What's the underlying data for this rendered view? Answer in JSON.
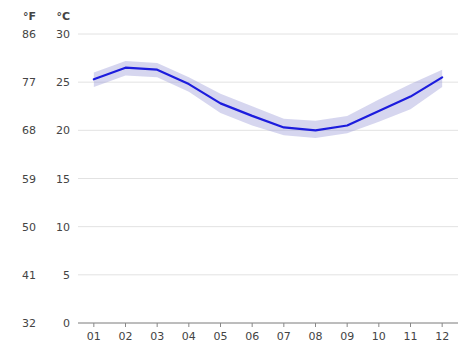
{
  "chart_data": {
    "type": "line",
    "y_label": "°C",
    "y2_label": "°F",
    "x": [
      1,
      2,
      3,
      4,
      5,
      6,
      7,
      8,
      9,
      10,
      11,
      12
    ],
    "xlim": [
      0.5,
      12.5
    ],
    "xticks": [
      {
        "value": 1,
        "label": "01"
      },
      {
        "value": 2,
        "label": "02"
      },
      {
        "value": 3,
        "label": "03"
      },
      {
        "value": 4,
        "label": "04"
      },
      {
        "value": 5,
        "label": "05"
      },
      {
        "value": 6,
        "label": "06"
      },
      {
        "value": 7,
        "label": "07"
      },
      {
        "value": 8,
        "label": "08"
      },
      {
        "value": 9,
        "label": "09"
      },
      {
        "value": 10,
        "label": "10"
      },
      {
        "value": 11,
        "label": "11"
      },
      {
        "value": 12,
        "label": "12"
      }
    ],
    "series": [
      {
        "type": "line",
        "color": "#1c1cdd",
        "values": [
          25.3,
          26.5,
          26.3,
          24.8,
          22.8,
          21.5,
          20.3,
          20.0,
          20.5,
          22.0,
          23.5,
          25.5
        ]
      },
      {
        "type": "band",
        "color": "#9898d8",
        "upper": [
          26.0,
          27.2,
          27.0,
          25.5,
          23.8,
          22.5,
          21.2,
          21.0,
          21.5,
          23.2,
          24.8,
          26.3
        ],
        "lower": [
          24.5,
          25.7,
          25.5,
          24.0,
          21.8,
          20.5,
          19.5,
          19.2,
          19.7,
          20.9,
          22.2,
          24.5
        ]
      }
    ],
    "ylim": [
      0,
      30
    ],
    "yticks": [
      0,
      5,
      10,
      15,
      20,
      25,
      30
    ],
    "y2lim": [
      32,
      86
    ],
    "y2ticks": [
      32,
      41,
      50,
      59,
      68,
      77,
      86
    ],
    "grid": true
  }
}
